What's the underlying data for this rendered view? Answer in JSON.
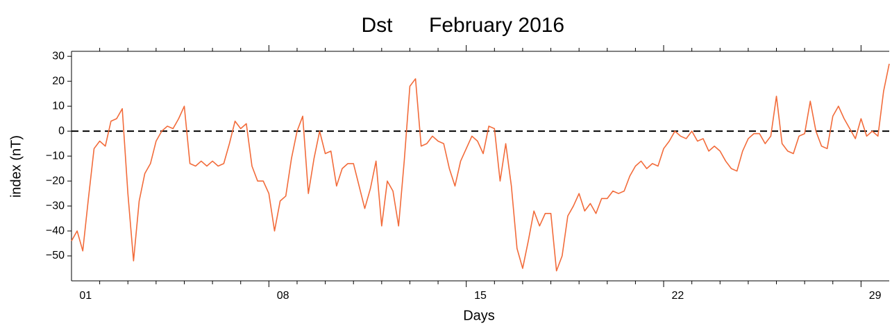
{
  "chart_data": {
    "type": "line",
    "title_name": "Dst",
    "title_name_color": "#f26b3a",
    "title": "February 2016",
    "xlabel": "Days",
    "ylabel": "index (nT)",
    "xlim": [
      1,
      30
    ],
    "ylim": [
      -60,
      32
    ],
    "yticks": [
      30,
      20,
      10,
      0,
      {
        "value": -10,
        "label": "−10"
      },
      {
        "value": -20,
        "label": "−20"
      },
      {
        "value": -30,
        "label": "−30"
      },
      {
        "value": -40,
        "label": "−40"
      },
      {
        "value": -50,
        "label": "−50"
      }
    ],
    "xticks": [
      {
        "value": 1.5,
        "label": "01"
      },
      {
        "value": 8.5,
        "label": "08"
      },
      {
        "value": 15.5,
        "label": "15"
      },
      {
        "value": 22.5,
        "label": "22"
      },
      {
        "value": 29.5,
        "label": "29"
      }
    ],
    "xminorticks": [
      2,
      3,
      4,
      5,
      6,
      7,
      8,
      9,
      10,
      11,
      12,
      13,
      14,
      15,
      16,
      17,
      18,
      19,
      20,
      21,
      22,
      23,
      24,
      25,
      26,
      27,
      28,
      29
    ],
    "hline": 0,
    "series": [
      {
        "name": "Dst",
        "color": "#f26b3a",
        "x": [
          1,
          1.2,
          1.4,
          1.6,
          1.8,
          2,
          2.2,
          2.4,
          2.6,
          2.8,
          3,
          3.2,
          3.4,
          3.6,
          3.8,
          4,
          4.2,
          4.4,
          4.6,
          4.8,
          5,
          5.2,
          5.4,
          5.6,
          5.8,
          6,
          6.2,
          6.4,
          6.6,
          6.8,
          7,
          7.2,
          7.4,
          7.6,
          7.8,
          8,
          8.2,
          8.4,
          8.6,
          8.8,
          9,
          9.2,
          9.4,
          9.6,
          9.8,
          10,
          10.2,
          10.4,
          10.6,
          10.8,
          11,
          11.2,
          11.4,
          11.6,
          11.8,
          12,
          12.2,
          12.4,
          12.6,
          12.8,
          13,
          13.2,
          13.4,
          13.6,
          13.8,
          14,
          14.2,
          14.4,
          14.6,
          14.8,
          15,
          15.2,
          15.4,
          15.6,
          15.8,
          16,
          16.2,
          16.4,
          16.6,
          16.8,
          17,
          17.2,
          17.4,
          17.6,
          17.8,
          18,
          18.2,
          18.4,
          18.6,
          18.8,
          19,
          19.2,
          19.4,
          19.6,
          19.8,
          20,
          20.2,
          20.4,
          20.6,
          20.8,
          21,
          21.2,
          21.4,
          21.6,
          21.8,
          22,
          22.2,
          22.4,
          22.6,
          22.8,
          23,
          23.2,
          23.4,
          23.6,
          23.8,
          24,
          24.2,
          24.4,
          24.6,
          24.8,
          25,
          25.2,
          25.4,
          25.6,
          25.8,
          26,
          26.2,
          26.4,
          26.6,
          26.8,
          27,
          27.2,
          27.4,
          27.6,
          27.8,
          28,
          28.2,
          28.4,
          28.6,
          28.8,
          29,
          29.2,
          29.4,
          29.6,
          29.8,
          30
        ],
        "values": [
          -44,
          -40,
          -48,
          -27,
          -7,
          -4,
          -6,
          4,
          5,
          9,
          -25,
          -52,
          -28,
          -17,
          -13,
          -4,
          0,
          2,
          1,
          5,
          10,
          -13,
          -14,
          -12,
          -14,
          -12,
          -14,
          -13,
          -5,
          4,
          1,
          3,
          -14,
          -20,
          -20,
          -25,
          -40,
          -28,
          -26,
          -11,
          0,
          6,
          -25,
          -11,
          0,
          -9,
          -8,
          -22,
          -15,
          -13,
          -13,
          -22,
          -31,
          -23,
          -12,
          -38,
          -20,
          -24,
          -38,
          -12,
          18,
          21,
          -6,
          -5,
          -2,
          -4,
          -5,
          -15,
          -22,
          -12,
          -7,
          -2,
          -4,
          -9,
          2,
          1,
          -20,
          -5,
          -22,
          -47,
          -55,
          -44,
          -32,
          -38,
          -33,
          -33,
          -56,
          -50,
          -34,
          -30,
          -25,
          -32,
          -29,
          -33,
          -27,
          -27,
          -24,
          -25,
          -24,
          -18,
          -14,
          -12,
          -15,
          -13,
          -14,
          -7,
          -4,
          0,
          -2,
          -3,
          0,
          -4,
          -3,
          -8,
          -6,
          -8,
          -12,
          -15,
          -16,
          -8,
          -3,
          -1,
          -1,
          -5,
          -2,
          14,
          -5,
          -8,
          -9,
          -2,
          -1,
          12,
          0,
          -6,
          -7,
          6,
          10,
          5,
          1,
          -3,
          5,
          -2,
          0,
          -2,
          16,
          27
        ]
      }
    ]
  }
}
